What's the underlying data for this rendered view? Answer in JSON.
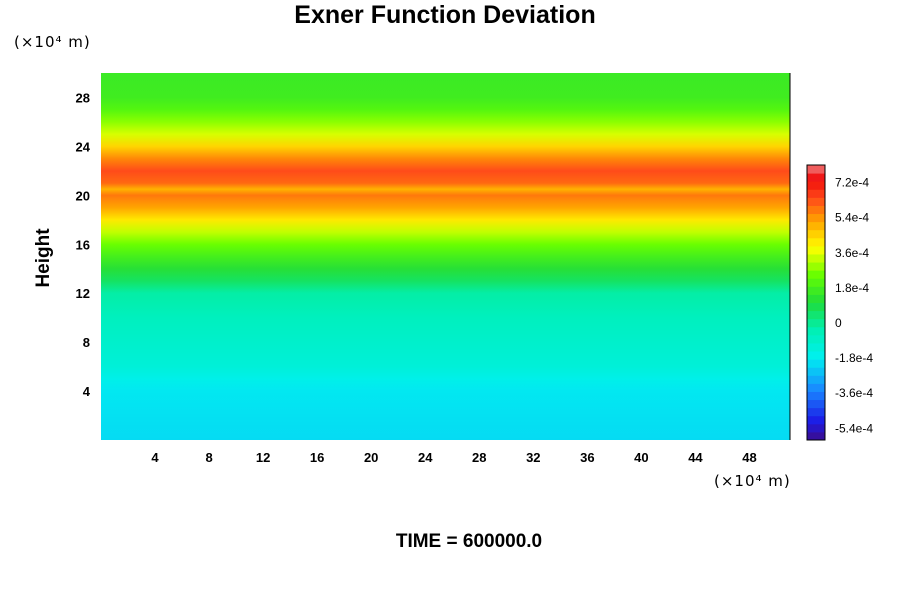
{
  "chart_data": {
    "type": "heatmap",
    "title": "Exner Function Deviation",
    "ylabel": "Height",
    "xlabel": "",
    "x_unit": "(×10⁴ m)",
    "y_unit": "(×10⁴ m)",
    "xlim": [
      0,
      51
    ],
    "ylim": [
      0,
      30
    ],
    "x_ticks": [
      "4",
      "8",
      "12",
      "16",
      "20",
      "24",
      "28",
      "32",
      "36",
      "40",
      "44",
      "48"
    ],
    "y_ticks": [
      "4",
      "8",
      "12",
      "16",
      "20",
      "24",
      "28"
    ],
    "colorbar": {
      "range": [
        -0.0006,
        0.00081
      ],
      "tick_values": [
        -0.00054,
        -0.00036,
        -0.00018,
        0,
        0.00018,
        0.00036,
        0.00054,
        0.00072
      ],
      "tick_labels": [
        "-5.4e-4",
        "-3.6e-4",
        "-1.8e-4",
        "0",
        "1.8e-4",
        "3.6e-4",
        "5.4e-4",
        "7.2e-4"
      ]
    },
    "vertical_profile": {
      "height": [
        0,
        2,
        4,
        5,
        6,
        8,
        10,
        12,
        13,
        14,
        15,
        16,
        17,
        18,
        19,
        20,
        20.5,
        21,
        22,
        23,
        24,
        25,
        26,
        27,
        28,
        30
      ],
      "value": [
        -0.00021,
        -0.0002,
        -0.00019,
        -0.00016,
        -0.00012,
        -9e-05,
        -6e-05,
        -2e-05,
        6e-05,
        0.00012,
        0.00018,
        0.00025,
        0.00033,
        0.00042,
        0.00052,
        0.00058,
        0.0005,
        0.0006,
        0.00064,
        0.00056,
        0.00045,
        0.00035,
        0.00028,
        0.00021,
        0.00017,
        0.00016
      ]
    },
    "grid": false,
    "legend": "none"
  },
  "time_text": "TIME = 600000.0"
}
